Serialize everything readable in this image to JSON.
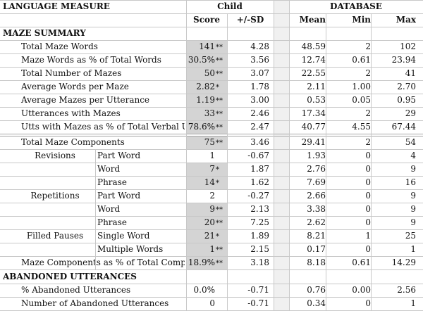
{
  "header": {
    "language_measure": "LANGUAGE MEASURE",
    "child": "Child",
    "database": "DATABASE",
    "score": "Score",
    "sd": "+/-SD",
    "mean": "Mean",
    "min": "Min",
    "max": "Max"
  },
  "sections": {
    "maze_summary": "MAZE SUMMARY",
    "abandoned": "ABANDONED UTTERANCES"
  },
  "rows": [
    {
      "label": "Total Maze Words",
      "score": "141",
      "stars": "**",
      "sd": "4.28",
      "mean": "48.59",
      "min": "2",
      "max": "102"
    },
    {
      "label": "Maze Words as % of Total Words",
      "score": "30.5%",
      "stars": "**",
      "sd": "3.56",
      "mean": "12.74",
      "min": "0.61",
      "max": "23.94"
    },
    {
      "label": "Total Number of Mazes",
      "score": "50",
      "stars": "**",
      "sd": "3.07",
      "mean": "22.55",
      "min": "2",
      "max": "41"
    },
    {
      "label": "Average Words per Maze",
      "score": "2.82",
      "stars": "*",
      "sd": "1.78",
      "mean": "2.11",
      "min": "1.00",
      "max": "2.70"
    },
    {
      "label": "Average Mazes per Utterance",
      "score": "1.19",
      "stars": "**",
      "sd": "3.00",
      "mean": "0.53",
      "min": "0.05",
      "max": "0.95"
    },
    {
      "label": "Utterances with Mazes",
      "score": "33",
      "stars": "**",
      "sd": "2.46",
      "mean": "17.34",
      "min": "2",
      "max": "29"
    },
    {
      "label": "Utts with Mazes as % of Total Verbal Utts",
      "score": "78.6%",
      "stars": "**",
      "sd": "2.47",
      "mean": "40.77",
      "min": "4.55",
      "max": "67.44"
    },
    {
      "label": "Total Maze Components",
      "score": "75",
      "stars": "**",
      "sd": "3.46",
      "mean": "29.41",
      "min": "2",
      "max": "54"
    },
    {
      "group": "Revisions",
      "sub": "Part Word",
      "score": "1",
      "stars": "",
      "sd": "-0.67",
      "mean": "1.93",
      "min": "0",
      "max": "4"
    },
    {
      "group": "",
      "sub": "Word",
      "score": "7",
      "stars": "*",
      "sd": "1.87",
      "mean": "2.76",
      "min": "0",
      "max": "9"
    },
    {
      "group": "",
      "sub": "Phrase",
      "score": "14",
      "stars": "*",
      "sd": "1.62",
      "mean": "7.69",
      "min": "0",
      "max": "16"
    },
    {
      "group": "Repetitions",
      "sub": "Part Word",
      "score": "2",
      "stars": "",
      "sd": "-0.27",
      "mean": "2.66",
      "min": "0",
      "max": "9"
    },
    {
      "group": "",
      "sub": "Word",
      "score": "9",
      "stars": "**",
      "sd": "2.13",
      "mean": "3.38",
      "min": "0",
      "max": "9"
    },
    {
      "group": "",
      "sub": "Phrase",
      "score": "20",
      "stars": "**",
      "sd": "7.25",
      "mean": "2.62",
      "min": "0",
      "max": "9"
    },
    {
      "group": "Filled Pauses",
      "sub": "Single Word",
      "score": "21",
      "stars": "*",
      "sd": "1.89",
      "mean": "8.21",
      "min": "1",
      "max": "25"
    },
    {
      "group": "",
      "sub": "Multiple Words",
      "score": "1",
      "stars": "**",
      "sd": "2.15",
      "mean": "0.17",
      "min": "0",
      "max": "1"
    },
    {
      "label": "Maze Components as % of Total Componer",
      "score": "18.9%",
      "stars": "**",
      "sd": "3.18",
      "mean": "8.18",
      "min": "0.61",
      "max": "14.29"
    },
    {
      "label": "% Abandoned Utterances",
      "score": "0.0%",
      "stars": "",
      "sd": "-0.71",
      "mean": "0.76",
      "min": "0.00",
      "max": "2.56"
    },
    {
      "label": "Number of Abandoned Utterances",
      "score": "0",
      "stars": "",
      "sd": "-0.71",
      "mean": "0.34",
      "min": "0",
      "max": "1"
    }
  ]
}
